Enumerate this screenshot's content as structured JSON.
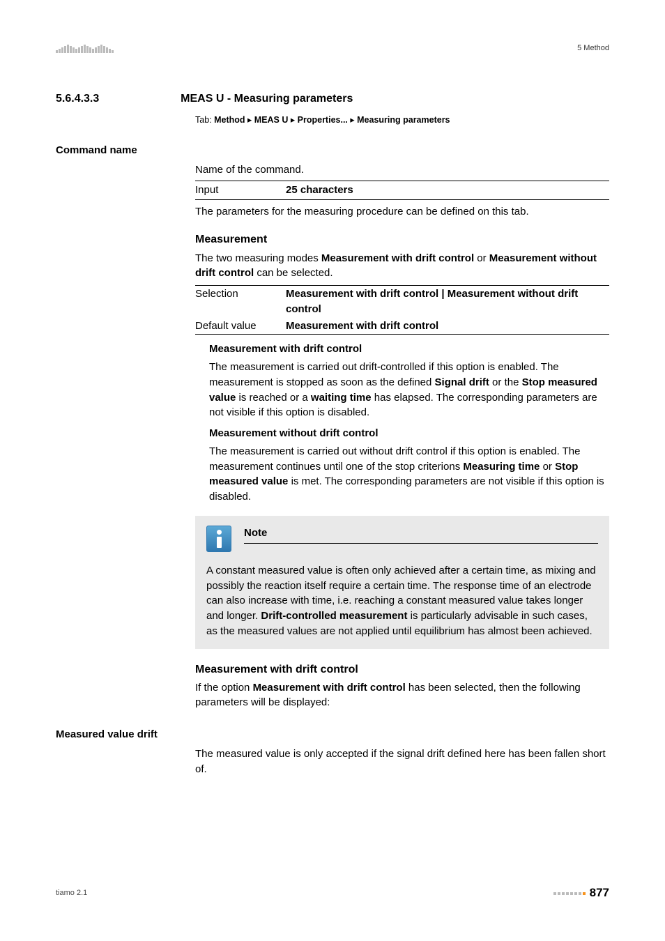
{
  "header": {
    "right_label": "5 Method"
  },
  "section": {
    "number": "5.6.4.3.3",
    "title": "MEAS U - Measuring parameters",
    "tab_prefix": "Tab: ",
    "tab_path": [
      "Method",
      "MEAS U",
      "Properties...",
      "Measuring parameters"
    ]
  },
  "command_name": {
    "label": "Command name",
    "desc": "Name of the command.",
    "input_row": {
      "k": "Input",
      "v": "25 characters"
    },
    "after": "The parameters for the measuring procedure can be defined on this tab."
  },
  "measurement": {
    "heading": "Measurement",
    "intro_pre": "The two measuring modes ",
    "intro_b1": "Measurement with drift control",
    "intro_mid": " or ",
    "intro_b2": "Measurement without drift control",
    "intro_post": " can be selected.",
    "table": {
      "selection_k": "Selection",
      "selection_v": "Measurement with drift control | Measurement without drift control",
      "default_k": "Default value",
      "default_v": "Measurement with drift control"
    },
    "opt1": {
      "title": "Measurement with drift control",
      "t1": "The measurement is carried out drift-controlled if this option is enabled. The measurement is stopped as soon as the defined ",
      "b1": "Signal drift",
      "t2": " or the ",
      "b2": "Stop measured value",
      "t3": " is reached or a ",
      "b3": "waiting time",
      "t4": " has elapsed. The corresponding parameters are not visible if this option is disabled."
    },
    "opt2": {
      "title": "Measurement without drift control",
      "t1": "The measurement is carried out without drift control if this option is enabled. The measurement continues until one of the stop criterions ",
      "b1": "Measuring time",
      "t2": " or ",
      "b2": "Stop measured value",
      "t3": " is met. The corresponding parameters are not visible if this option is disabled."
    }
  },
  "note": {
    "title": "Note",
    "t1": "A constant measured value is often only achieved after a certain time, as mixing and possibly the reaction itself require a certain time. The response time of an electrode can also increase with time, i.e. reaching a constant measured value takes longer and longer. ",
    "b1": "Drift-controlled measurement",
    "t2": " is particularly advisable in such cases, as the measured values are not applied until equilibrium has almost been achieved."
  },
  "drift_section": {
    "heading": "Measurement with drift control",
    "t1": "If the option ",
    "b1": "Measurement with drift control",
    "t2": " has been selected, then the following parameters will be displayed:"
  },
  "measured_value_drift": {
    "label": "Measured value drift",
    "desc": "The measured value is only accepted if the signal drift defined here has been fallen short of."
  },
  "footer": {
    "left": "tiamo 2.1",
    "page": "877"
  },
  "style": {
    "logo_bar_heights": [
      4,
      6,
      8,
      10,
      12,
      10,
      8,
      6,
      8,
      10,
      12,
      10,
      8,
      6,
      8,
      10,
      12,
      10,
      8,
      6,
      4
    ],
    "footer_active_index": 7
  }
}
